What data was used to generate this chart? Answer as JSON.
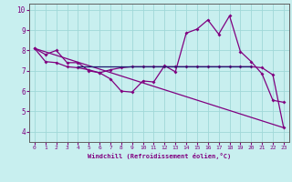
{
  "xlabel": "Windchill (Refroidissement éolien,°C)",
  "background_color": "#c8efef",
  "line_color": "#800080",
  "grid_color": "#a0d8d8",
  "spine_color": "#606060",
  "xlim": [
    -0.5,
    23.5
  ],
  "ylim": [
    3.5,
    10.3
  ],
  "xticks": [
    0,
    1,
    2,
    3,
    4,
    5,
    6,
    7,
    8,
    9,
    10,
    11,
    12,
    13,
    14,
    15,
    16,
    17,
    18,
    19,
    20,
    21,
    22,
    23
  ],
  "yticks": [
    4,
    5,
    6,
    7,
    8,
    9,
    10
  ],
  "line1_x": [
    0,
    1,
    2,
    3,
    4,
    5,
    6,
    7,
    8,
    9,
    10,
    11,
    12,
    13,
    14,
    15,
    16,
    17,
    18,
    19,
    20,
    21,
    22,
    23
  ],
  "line1_y": [
    8.1,
    7.8,
    8.0,
    7.4,
    7.4,
    7.0,
    6.9,
    6.6,
    6.0,
    5.95,
    6.5,
    6.45,
    7.25,
    6.95,
    8.85,
    9.05,
    9.5,
    8.8,
    9.7,
    7.95,
    7.45,
    6.85,
    5.55,
    5.45
  ],
  "line2_x": [
    0,
    1,
    2,
    3,
    4,
    5,
    6,
    7,
    8,
    9,
    10,
    11,
    12,
    13,
    14,
    15,
    16,
    17,
    18,
    19,
    20,
    21,
    22,
    23
  ],
  "line2_y": [
    8.1,
    7.45,
    7.4,
    7.2,
    7.15,
    7.05,
    6.9,
    7.05,
    7.15,
    7.2,
    7.2,
    7.2,
    7.2,
    7.2,
    7.2,
    7.2,
    7.2,
    7.2,
    7.2,
    7.2,
    7.2,
    7.15,
    6.8,
    4.2
  ],
  "line3_x": [
    0,
    23
  ],
  "line3_y": [
    8.1,
    4.2
  ],
  "hline_y": 7.2,
  "hline_x_start": 4,
  "hline_x_end": 20
}
